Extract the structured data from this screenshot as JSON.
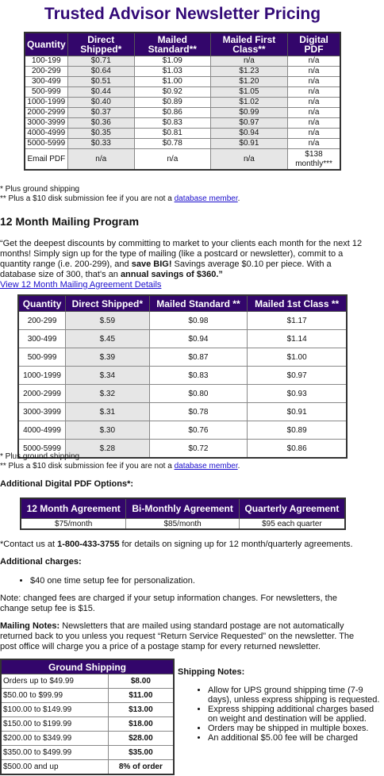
{
  "title": "Trusted Advisor Newsletter Pricing",
  "pricing_table": {
    "headers": [
      "Quantity",
      "Direct Shipped*",
      "Mailed Standard**",
      "Mailed First Class**",
      "Digital PDF"
    ],
    "rows": [
      [
        "100-199",
        "$0.71",
        "$1.09",
        "n/a",
        "n/a"
      ],
      [
        "200-299",
        "$0.64",
        "$1.03",
        "$1.23",
        "n/a"
      ],
      [
        "300-499",
        "$0.51",
        "$1.00",
        "$1.20",
        "n/a"
      ],
      [
        "500-999",
        "$0.44",
        "$0.92",
        "$1.05",
        "n/a"
      ],
      [
        "1000-1999",
        "$0.40",
        "$0.89",
        "$1.02",
        "n/a"
      ],
      [
        "2000-2999",
        "$0.37",
        "$0.86",
        "$0.99",
        "n/a"
      ],
      [
        "3000-3999",
        "$0.36",
        "$0.83",
        "$0.97",
        "n/a"
      ],
      [
        "4000-4999",
        "$0.35",
        "$0.81",
        "$0.94",
        "n/a"
      ],
      [
        "5000-5999",
        "$0.33",
        "$0.78",
        "$0.91",
        "n/a"
      ],
      [
        "Email PDF",
        "n/a",
        "n/a",
        "n/a",
        "$138 monthly***"
      ]
    ]
  },
  "notes_1": {
    "shipping": "* Plus ground shipping",
    "disk": "** Plus a $10 disk submission fee if you are not a ",
    "link": "database member",
    "end": "."
  },
  "program": {
    "heading": "12 Month Mailing Program",
    "paragraph": [
      "“Get the deepest discounts by committing to market to your clients each month for the next 12 months! Simply sign up for the type of mailing (like a postcard or newsletter), commit to a quantity range (i.e. 200-299), and ",
      "save BIG!",
      " Savings average $0.10 per piece. With a database size of 300, that's an ",
      "annual savings of $360.”"
    ],
    "link": "View 12 Month Mailing Agreement Details"
  },
  "program_table": {
    "headers": [
      "Quantity",
      "Direct Shipped*",
      "Mailed Standard **",
      "Mailed 1st Class **"
    ],
    "rows": [
      [
        "200-299",
        "$.59",
        "$0.98",
        "$1.17"
      ],
      [
        "300-499",
        "$.45",
        "$0.94",
        "$1.14"
      ],
      [
        "500-999",
        "$.39",
        "$0.87",
        "$1.00"
      ],
      [
        "1000-1999",
        "$.34",
        "$0.83",
        "$0.97"
      ],
      [
        "2000-2999",
        "$.32",
        "$0.80",
        "$0.93"
      ],
      [
        "3000-3999",
        "$.31",
        "$0.78",
        "$0.91"
      ],
      [
        "4000-4999",
        "$.30",
        "$0.76",
        "$0.89"
      ],
      [
        "5000-5999",
        "$.28",
        "$0.72",
        "$0.86"
      ]
    ]
  },
  "notes_2": {
    "shipping": "* Plus ground shipping",
    "disk": "** Plus a $10 disk submission fee if you are not a ",
    "link": "database member",
    "end": "."
  },
  "pdf_options": {
    "heading": "Additional Digital PDF Options*:",
    "headers": [
      "12 Month Agreement",
      "Bi-Monthly Agreement",
      "Quarterly Agreement"
    ],
    "row": [
      "$75/month",
      "$85/month",
      "$95 each quarter"
    ]
  },
  "contact": [
    "*Contact us at ",
    "1-800-433-3755",
    " for details on signing up for 12 month/quarterly agreements."
  ],
  "additional_charges": {
    "heading": "Additional charges:",
    "items": [
      "$40 one time setup fee for personalization."
    ]
  },
  "change_note": "Note: changed fees are charged if your setup information changes. For newsletters, the change setup fee is $15.",
  "mailing_notes": [
    "Mailing Notes:",
    " Newsletters that are mailed using standard postage are not automatically returned back to you unless you request “Return Service Requested” on the newsletter.  The post office will charge you a price of a postage stamp for every returned newsletter."
  ],
  "shipping_table": {
    "title": "Ground Shipping",
    "rows": [
      [
        "Orders up to $49.99",
        "$8.00"
      ],
      [
        "$50.00 to $99.99",
        "$11.00"
      ],
      [
        "$100.00 to $149.99",
        "$13.00"
      ],
      [
        "$150.00 to $199.99",
        "$18.00"
      ],
      [
        "$200.00 to $349.99",
        "$28.00"
      ],
      [
        "$350.00 to $499.99",
        "$35.00"
      ],
      [
        "$500.00 and up",
        "8% of order"
      ]
    ]
  },
  "shipping_notes": {
    "heading": "Shipping Notes:",
    "items": [
      "Allow for UPS ground shipping time (7-9 days), unless express shipping is requested.",
      "Express shipping additional charges based on weight and destination will be applied.",
      "Orders may be shipped in multiple boxes.",
      "An additional $5.00 fee will be charged"
    ]
  }
}
